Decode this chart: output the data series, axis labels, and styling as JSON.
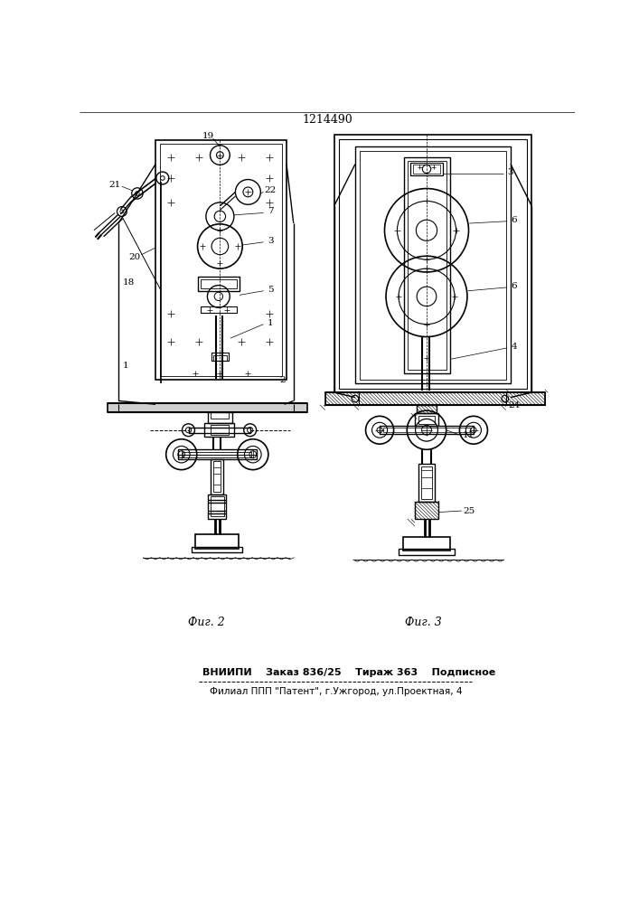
{
  "patent_number": "1214490",
  "background_color": "#ffffff",
  "line_color": "#000000",
  "fig_width": 7.07,
  "fig_height": 10.0,
  "footer_line1": "ВНИИПИ    Заказ 836/25    Тираж 363    Подписное",
  "footer_line2": "Филиал ППП \"Патент\", г.Ужгород, ул.Проектная, 4",
  "fig2_label": "Фиг. 2",
  "fig3_label": "Фиг. 3"
}
